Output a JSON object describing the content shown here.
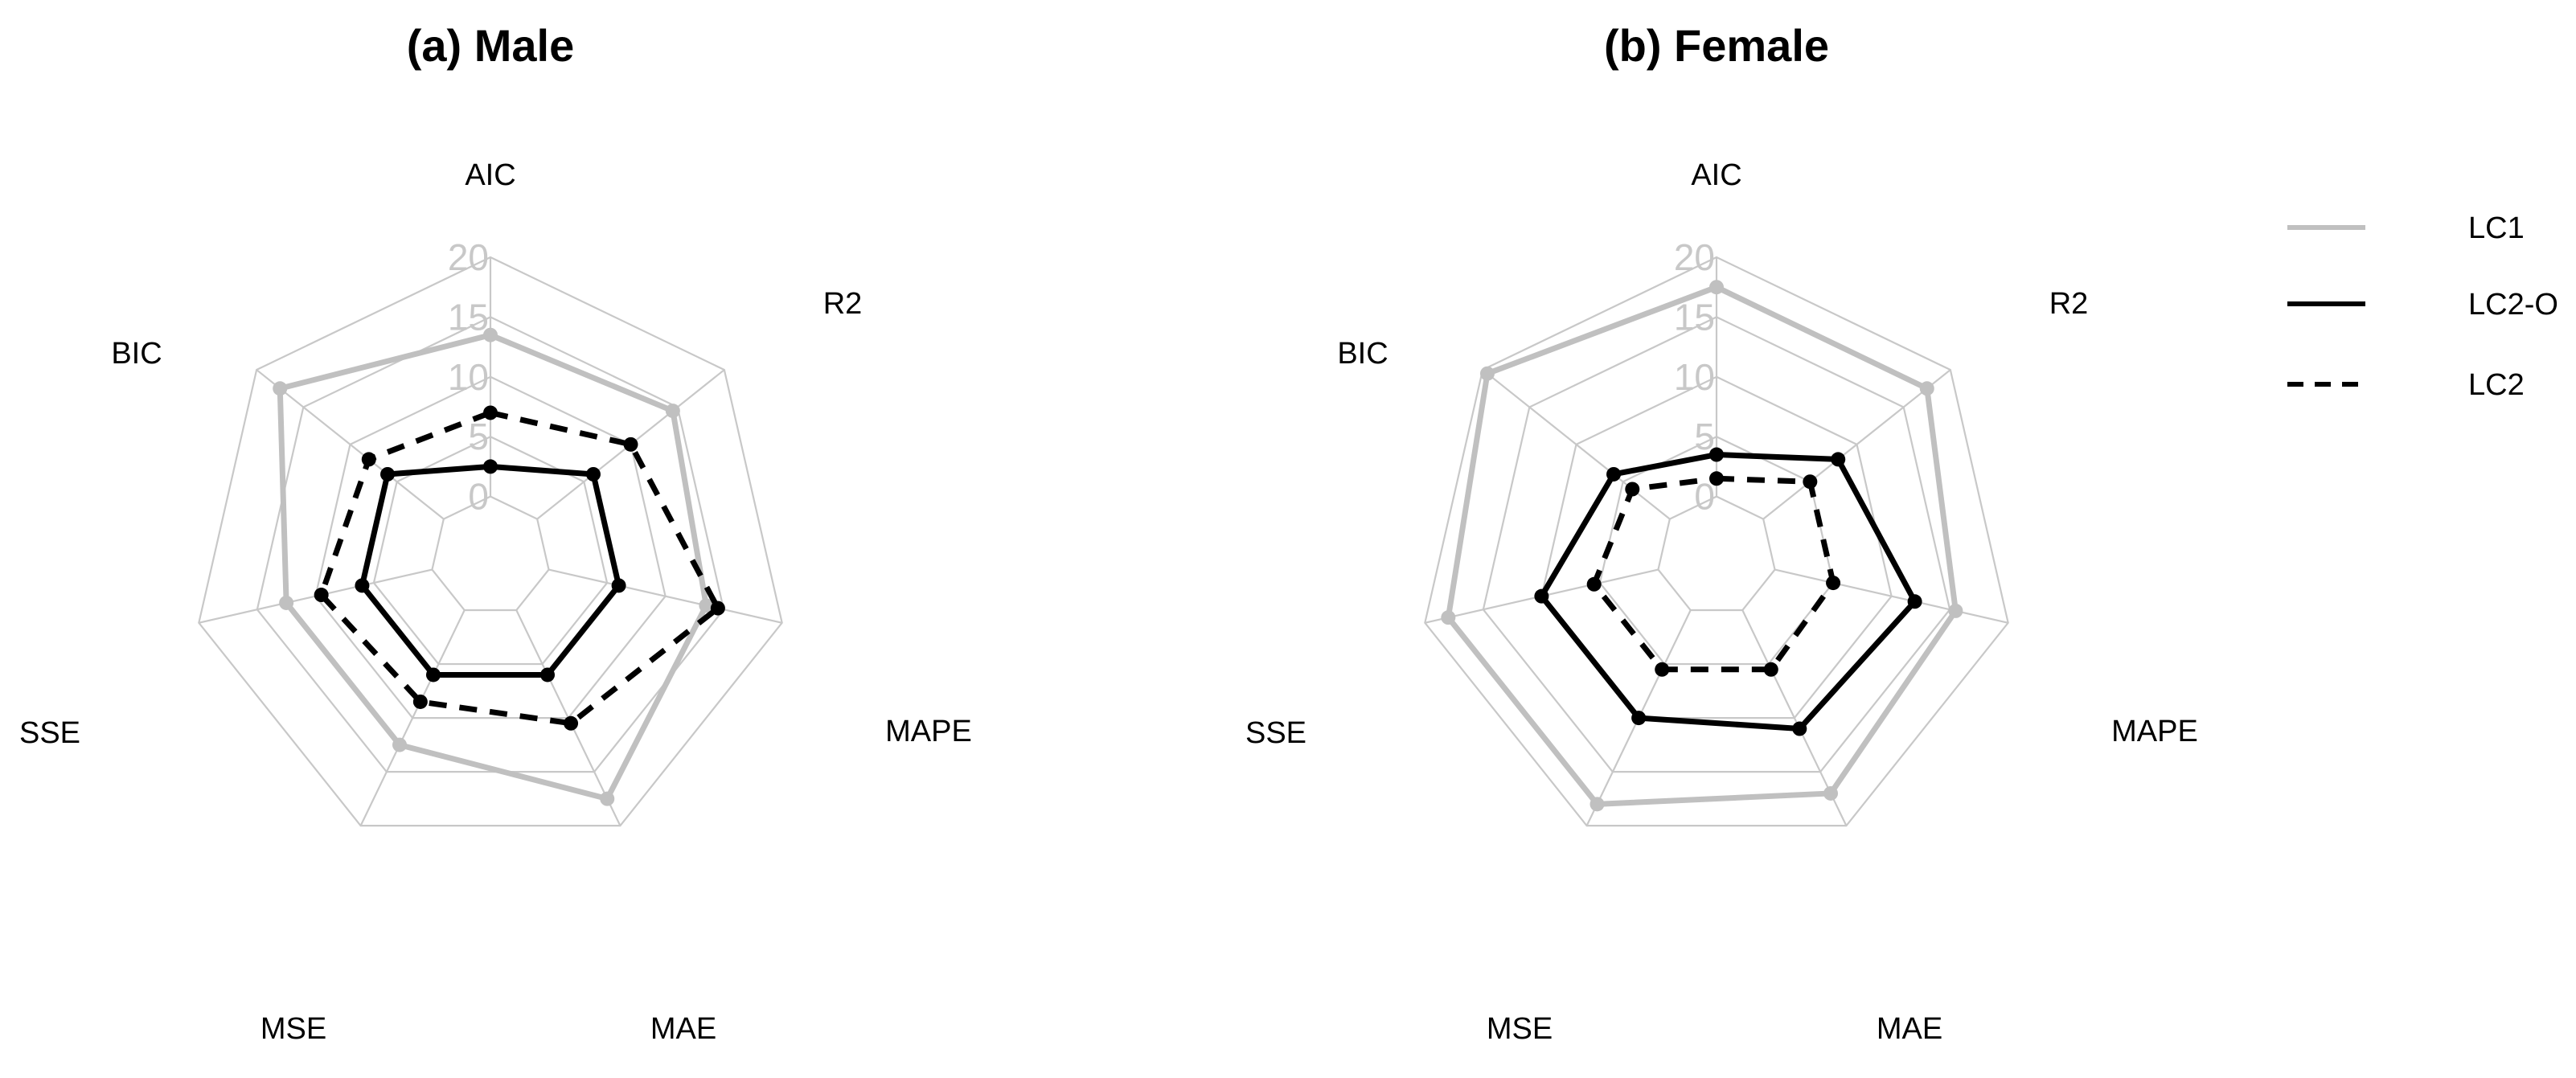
{
  "chart_data": [
    {
      "type": "radar",
      "title": "(a) Male",
      "axes": [
        "AIC",
        "R2",
        "MAPE",
        "MAE",
        "MSE",
        "SSE",
        "BIC"
      ],
      "ticks": [
        "0",
        "5",
        "10",
        "15",
        "20"
      ],
      "rlim": [
        0,
        20
      ],
      "series": [
        {
          "name": "LC1",
          "values": [
            13.5,
            14.5,
            13.5,
            17.5,
            12.5,
            12.5,
            17.5
          ]
        },
        {
          "name": "LC2-O",
          "values": [
            2.5,
            6.0,
            6.0,
            6.0,
            6.0,
            6.0,
            6.0
          ]
        },
        {
          "name": "LC2",
          "values": [
            7.0,
            10.0,
            14.5,
            10.5,
            8.5,
            9.5,
            8.0
          ]
        }
      ]
    },
    {
      "type": "radar",
      "title": "(b) Female",
      "axes": [
        "AIC",
        "R2",
        "MAPE",
        "MAE",
        "MSE",
        "SSE",
        "BIC"
      ],
      "ticks": [
        "0",
        "5",
        "10",
        "15",
        "20"
      ],
      "rlim": [
        0,
        20
      ],
      "series": [
        {
          "name": "LC1",
          "values": [
            17.5,
            17.5,
            15.5,
            17.0,
            18.0,
            18.0,
            19.5
          ]
        },
        {
          "name": "LC2-O",
          "values": [
            3.5,
            8.0,
            12.0,
            11.0,
            10.0,
            10.0,
            6.0
          ]
        },
        {
          "name": "LC2",
          "values": [
            1.5,
            5.0,
            5.0,
            5.5,
            5.5,
            5.5,
            4.0
          ]
        }
      ]
    }
  ],
  "legend": {
    "placement": "right",
    "items": [
      {
        "label": "LC1",
        "color": "#c0c0c0",
        "dash": "solid"
      },
      {
        "label": "LC2-O",
        "color": "#000000",
        "dash": "solid"
      },
      {
        "label": "LC2",
        "color": "#000000",
        "dash": "dashed"
      }
    ]
  },
  "colors": {
    "grid": "#c8c8c8",
    "lc1": "#c0c0c0",
    "lc2o": "#000000",
    "lc2": "#000000"
  }
}
